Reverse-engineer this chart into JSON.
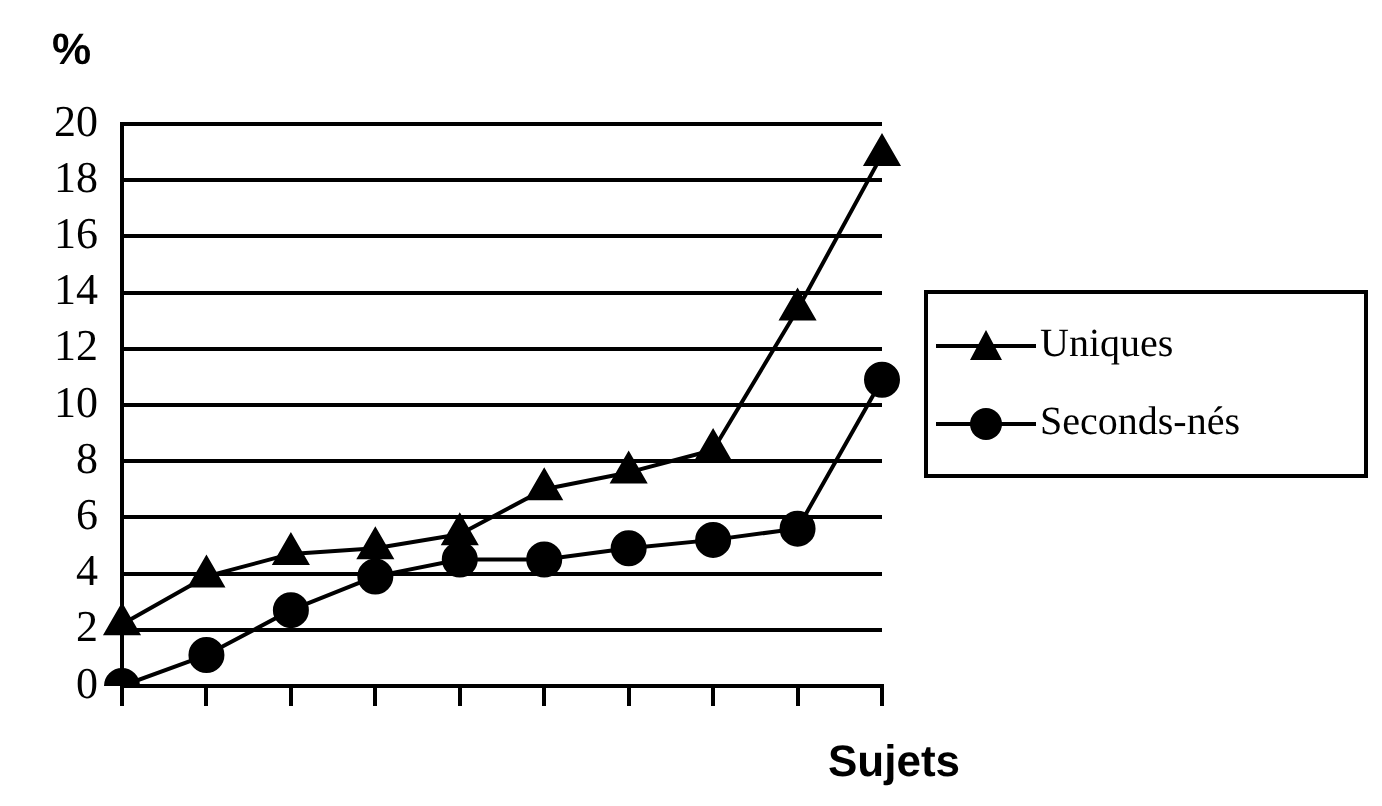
{
  "chart_data": {
    "type": "line",
    "ylabel": "%",
    "xlabel": "Sujets",
    "categories": [
      null,
      null,
      null,
      null,
      null,
      null,
      null,
      null,
      null,
      null
    ],
    "series": [
      {
        "name": "Uniques",
        "color": "#000000",
        "marker": "triangle",
        "values": [
          2.2,
          3.9,
          4.7,
          4.9,
          5.4,
          7.0,
          7.6,
          8.4,
          13.4,
          18.9
        ]
      },
      {
        "name": "Seconds-nés",
        "color": "#000000",
        "marker": "circle",
        "values": [
          0,
          1.1,
          2.7,
          3.9,
          4.5,
          4.5,
          4.9,
          5.2,
          5.6,
          10.9
        ]
      }
    ],
    "ylim": [
      0,
      20
    ],
    "yticks": [
      0,
      2,
      4,
      6,
      8,
      10,
      12,
      14,
      16,
      18,
      20
    ],
    "grid": "y",
    "legend": "right",
    "line_style": "solid"
  }
}
